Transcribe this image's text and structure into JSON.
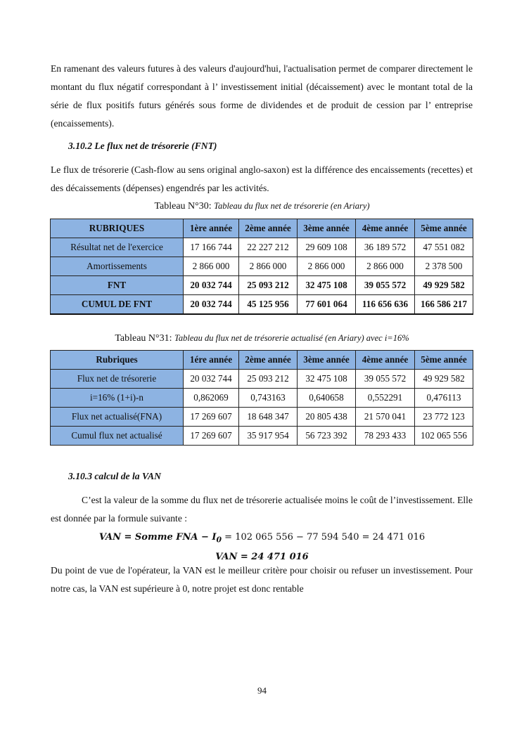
{
  "intro": "En ramenant des valeurs futures à des valeurs d'aujourd'hui, l'actualisation  permet de comparer directement le montant du flux négatif correspondant à l’ investissement initial (décaissement) avec le montant total de la série de flux positifs futurs générés sous forme de dividendes et de produit de cession par l’ entreprise (encaissements).",
  "section_fnt": "3.10.2  Le flux net de trésorerie (FNT)",
  "fnt_text": "Le flux de trésorerie (Cash-flow au sens original anglo-saxon) est la différence des encaissements (recettes) et des décaissements (dépenses) engendrés par les activités.",
  "table30": {
    "label": "Tableau N°30:",
    "title": "Tableau du  flux net de trésorerie (en Ariary)",
    "headers": [
      "RUBRIQUES",
      "1ère année",
      "2ème année",
      "3ème année",
      "4ème année",
      "5ème année"
    ],
    "rows": [
      [
        "Résultat net de l'exercice",
        "17 166 744",
        "22 227 212",
        "29 609 108",
        "36 189 572",
        "47 551 082"
      ],
      [
        "Amortissements",
        "2 866 000",
        "2 866 000",
        "2 866 000",
        "2 866 000",
        "2 378 500"
      ],
      [
        "FNT",
        "20 032 744",
        "25 093 212",
        "32 475 108",
        "39 055 572",
        "49 929 582"
      ],
      [
        "CUMUL DE FNT",
        "20 032 744",
        "45 125 956",
        "77 601 064",
        "116 656 636",
        "166 586 217"
      ]
    ]
  },
  "table31": {
    "label": "Tableau N°31:",
    "title": "Tableau du  flux net de trésorerie actualisé (en Ariary) avec i=16%",
    "headers": [
      "Rubriques",
      "1ére année",
      "2ème année",
      "3ème année",
      "4ème année",
      "5ème année"
    ],
    "rows": [
      [
        "Flux net de trésorerie",
        "20 032 744",
        "25 093 212",
        "32 475 108",
        "39 055 572",
        "49 929 582"
      ],
      [
        "i=16% (1+i)-n",
        "0,862069",
        "0,743163",
        "0,640658",
        "0,552291",
        "0,476113"
      ],
      [
        "Flux net actualisé(FNA)",
        "17 269 607",
        "18 648 347",
        "20 805 438",
        "21 570 041",
        "23 772 123"
      ],
      [
        "Cumul flux net actualisé",
        "17 269 607",
        "35 917 954",
        "56 723 392",
        "78 293 433",
        "102 065 556"
      ]
    ]
  },
  "section_van": "3.10.3  calcul de la VAN",
  "van_text": "C’est la valeur de la somme du flux net de trésorerie actualisée moins le coût de l’investissement. Elle est donnée par la formule suivante :",
  "formula": {
    "lhs": "VAN = Somme FNA − I",
    "sub": "0",
    "rhs": " = 102 065 556 − 77 594 540 = 24 471 016",
    "result": "VAN = 24 471 016"
  },
  "conclusion": "Du point de vue de l'opérateur, la VAN est le meilleur critère pour choisir ou refuser un investissement. Pour notre cas, la VAN est supérieure à 0, notre projet est donc rentable",
  "page_number": "94"
}
